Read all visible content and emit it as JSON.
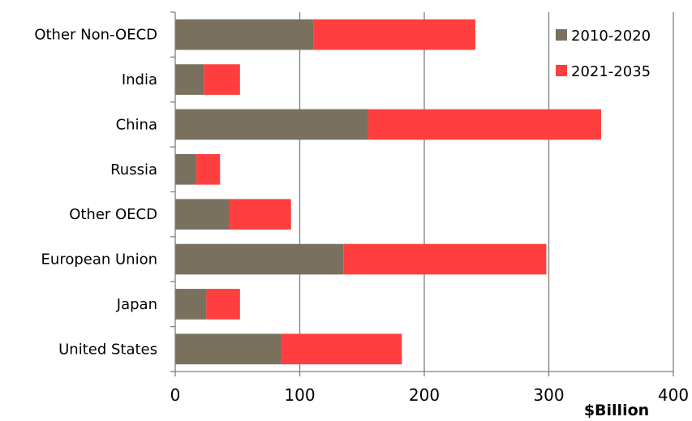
{
  "chart_data": {
    "type": "bar",
    "orientation": "horizontal",
    "stacked": true,
    "categories": [
      "Other Non-OECD",
      "India",
      "China",
      "Russia",
      "Other OECD",
      "European Union",
      "Japan",
      "United States"
    ],
    "series": [
      {
        "name": "2010-2020",
        "color": "#79705d",
        "values": [
          111,
          23,
          155,
          17,
          43,
          135,
          25,
          85
        ]
      },
      {
        "name": "2021-2035",
        "color": "#ff3f3f",
        "values": [
          130,
          29,
          187,
          19,
          50,
          163,
          27,
          97
        ]
      }
    ],
    "xlabel": "$Billion",
    "xlim": [
      0,
      400
    ],
    "xticks": [
      0,
      100,
      200,
      300,
      400
    ],
    "grid": true,
    "legend_position": "top-right"
  }
}
